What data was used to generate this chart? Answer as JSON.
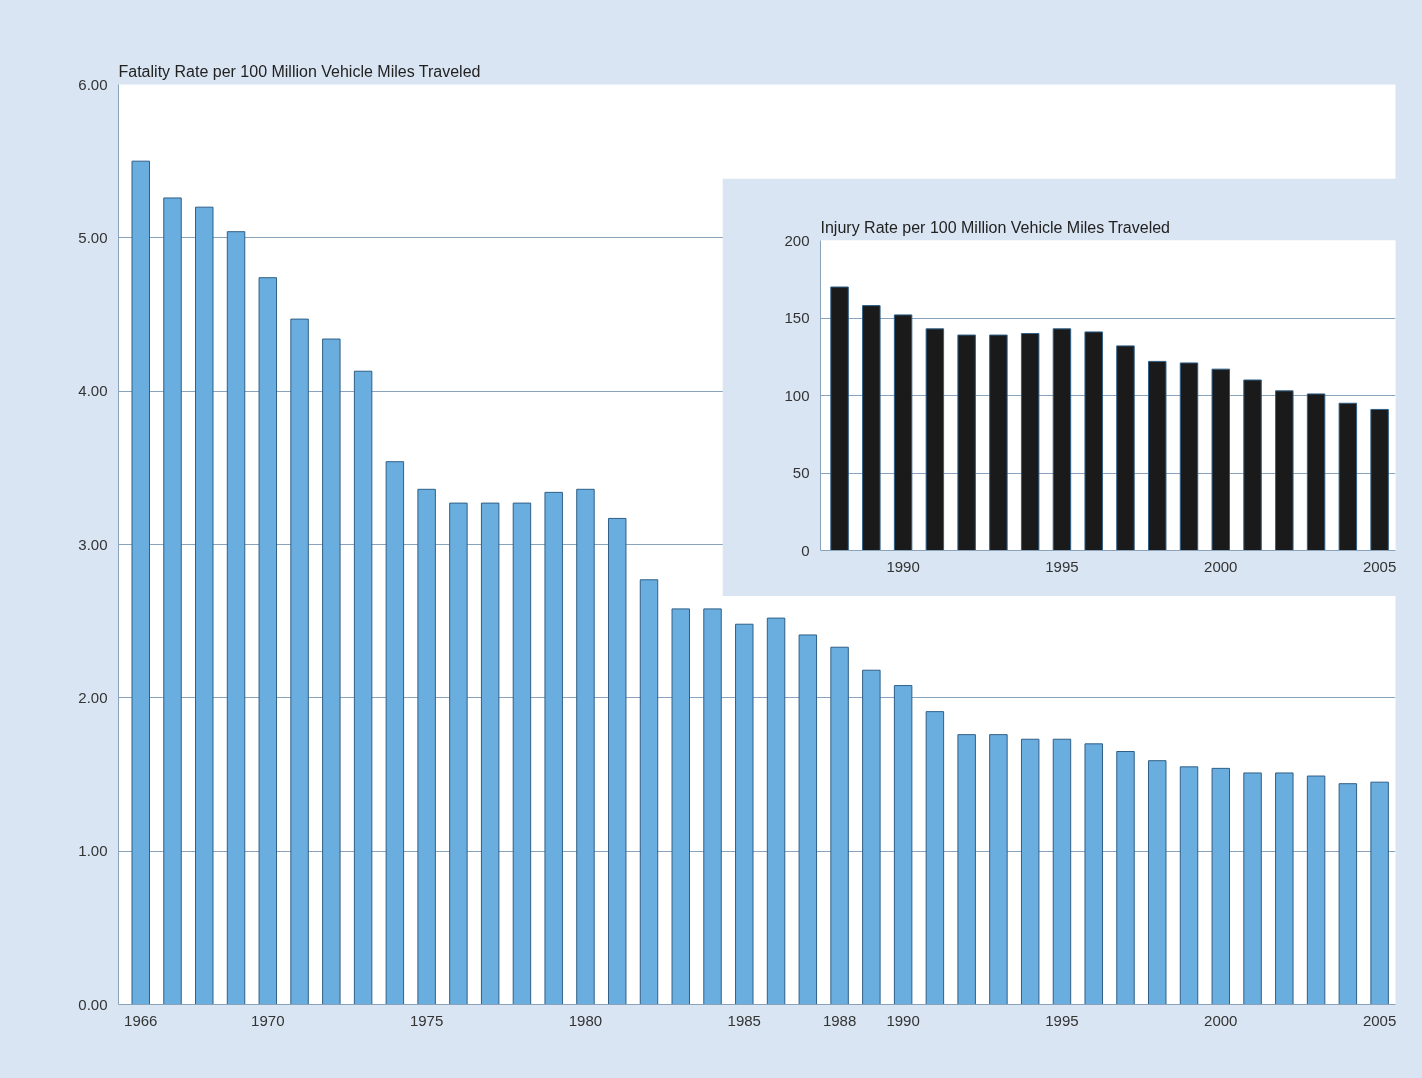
{
  "chart_data": [
    {
      "type": "bar",
      "title": "Fatality Rate per 100 Million Vehicle Miles Traveled",
      "x": [
        1966,
        1967,
        1968,
        1969,
        1970,
        1971,
        1972,
        1973,
        1974,
        1975,
        1976,
        1977,
        1978,
        1979,
        1980,
        1981,
        1982,
        1983,
        1984,
        1985,
        1986,
        1987,
        1988,
        1989,
        1990,
        1991,
        1992,
        1993,
        1994,
        1995,
        1996,
        1997,
        1998,
        1999,
        2000,
        2001,
        2002,
        2003,
        2004,
        2005
      ],
      "values": [
        5.5,
        5.26,
        5.2,
        5.04,
        4.74,
        4.47,
        4.34,
        4.13,
        3.54,
        3.36,
        3.27,
        3.27,
        3.27,
        3.34,
        3.36,
        3.17,
        2.77,
        2.58,
        2.58,
        2.48,
        2.52,
        2.41,
        2.33,
        2.18,
        2.08,
        1.91,
        1.76,
        1.76,
        1.73,
        1.73,
        1.7,
        1.65,
        1.59,
        1.55,
        1.54,
        1.51,
        1.51,
        1.49,
        1.44,
        1.45
      ],
      "color": "#6aaee0",
      "xlim": [
        1965.3,
        2005.5
      ],
      "ylim": [
        0,
        6
      ],
      "xticks": [
        1966,
        1970,
        1975,
        1980,
        1985,
        1988,
        1990,
        1995,
        2000,
        2005
      ],
      "yticks": [
        {
          "value": 0,
          "label": "0.00"
        },
        {
          "value": 1,
          "label": "1.00"
        },
        {
          "value": 2,
          "label": "2.00"
        },
        {
          "value": 3,
          "label": "3.00"
        },
        {
          "value": 4,
          "label": "4.00"
        },
        {
          "value": 5,
          "label": "5.00"
        },
        {
          "value": 6,
          "label": "6.00"
        }
      ],
      "grid": "y"
    },
    {
      "type": "bar",
      "title": "Injury Rate per 100 Million Vehicle Miles Traveled",
      "x": [
        1988,
        1989,
        1990,
        1991,
        1992,
        1993,
        1994,
        1995,
        1996,
        1997,
        1998,
        1999,
        2000,
        2001,
        2002,
        2003,
        2004,
        2005
      ],
      "values": [
        170,
        158,
        152,
        143,
        139,
        139,
        140,
        143,
        141,
        132,
        122,
        121,
        117,
        110,
        103,
        101,
        95,
        91
      ],
      "color": "#1a1a1a",
      "xlim": [
        1987.4,
        2005.5
      ],
      "ylim": [
        0,
        200
      ],
      "xticks": [
        1990,
        1995,
        2000,
        2005
      ],
      "yticks": [
        0,
        50,
        100,
        150,
        200
      ],
      "grid": "y"
    }
  ]
}
